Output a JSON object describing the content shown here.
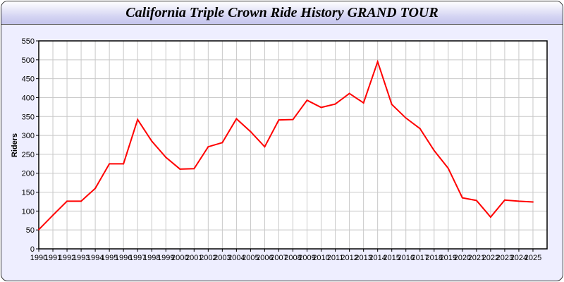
{
  "chart_data": {
    "type": "line",
    "title": "California Triple Crown Ride History GRAND TOUR",
    "xlabel": "",
    "ylabel": "Riders",
    "x": [
      1990,
      1991,
      1992,
      1993,
      1994,
      1995,
      1996,
      1997,
      1998,
      1999,
      2000,
      2001,
      2002,
      2003,
      2004,
      2005,
      2006,
      2007,
      2008,
      2009,
      2010,
      2011,
      2012,
      2013,
      2014,
      2015,
      2016,
      2017,
      2018,
      2019,
      2020,
      2021,
      2022,
      2023,
      2024,
      2025
    ],
    "series": [
      {
        "values": [
          51,
          89,
          126,
          126,
          160,
          225,
          225,
          342,
          285,
          242,
          211,
          212,
          270,
          281,
          344,
          310,
          270,
          341,
          342,
          393,
          374,
          383,
          411,
          386,
          495,
          382,
          346,
          318,
          260,
          213,
          135,
          128,
          84,
          129,
          126,
          124
        ],
        "color": "#ff0000"
      }
    ],
    "xlim": [
      1990,
      2026
    ],
    "ylim": [
      0,
      550
    ],
    "yticks": [
      0,
      50,
      100,
      150,
      200,
      250,
      300,
      350,
      400,
      450,
      500,
      550
    ],
    "grid": true,
    "legend": "none"
  },
  "colors": {
    "background": "#eeeeff",
    "grid": "#c8c8c8",
    "line": "#ff0000"
  }
}
